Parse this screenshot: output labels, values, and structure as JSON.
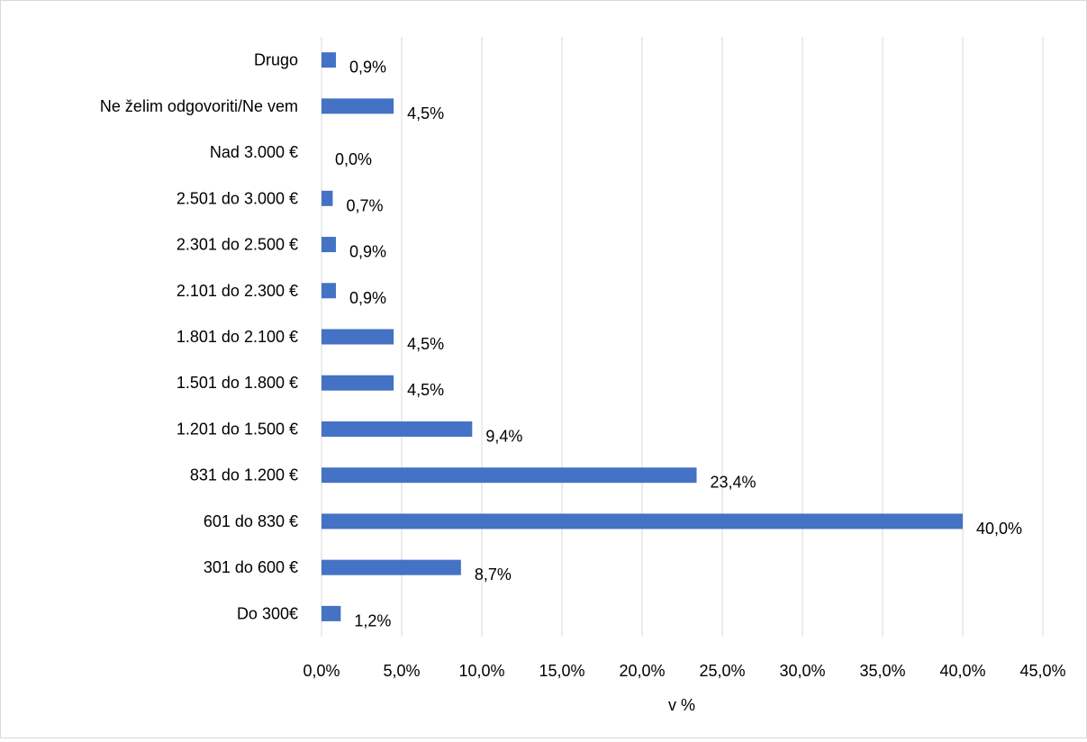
{
  "chart_data": {
    "type": "bar",
    "orientation": "horizontal",
    "categories": [
      "Drugo",
      "Ne želim odgovoriti/Ne vem",
      "Nad 3.000 €",
      "2.501 do 3.000 €",
      "2.301 do 2.500 €",
      "2.101 do 2.300 €",
      "1.801 do 2.100 €",
      "1.501 do 1.800 €",
      "1.201 do 1.500 €",
      "831 do 1.200 €",
      "601 do 830 €",
      "301 do 600 €",
      "Do 300€"
    ],
    "values": [
      0.9,
      4.5,
      0.0,
      0.7,
      0.9,
      0.9,
      4.5,
      4.5,
      9.4,
      23.4,
      40.0,
      8.7,
      1.2
    ],
    "data_labels": [
      "0,9%",
      "4,5%",
      "0,0%",
      "0,7%",
      "0,9%",
      "0,9%",
      "4,5%",
      "4,5%",
      "9,4%",
      "23,4%",
      "40,0%",
      "8,7%",
      "1,2%"
    ],
    "x_ticks": [
      "0,0%",
      "5,0%",
      "10,0%",
      "15,0%",
      "20,0%",
      "25,0%",
      "30,0%",
      "35,0%",
      "40,0%",
      "45,0%"
    ],
    "xlim": [
      0,
      45
    ],
    "xlabel": "v %",
    "ylabel": "",
    "title": "",
    "grid": true,
    "legend": "none",
    "bar_color": "#4472c4",
    "grid_color": "#d9d9d9"
  }
}
